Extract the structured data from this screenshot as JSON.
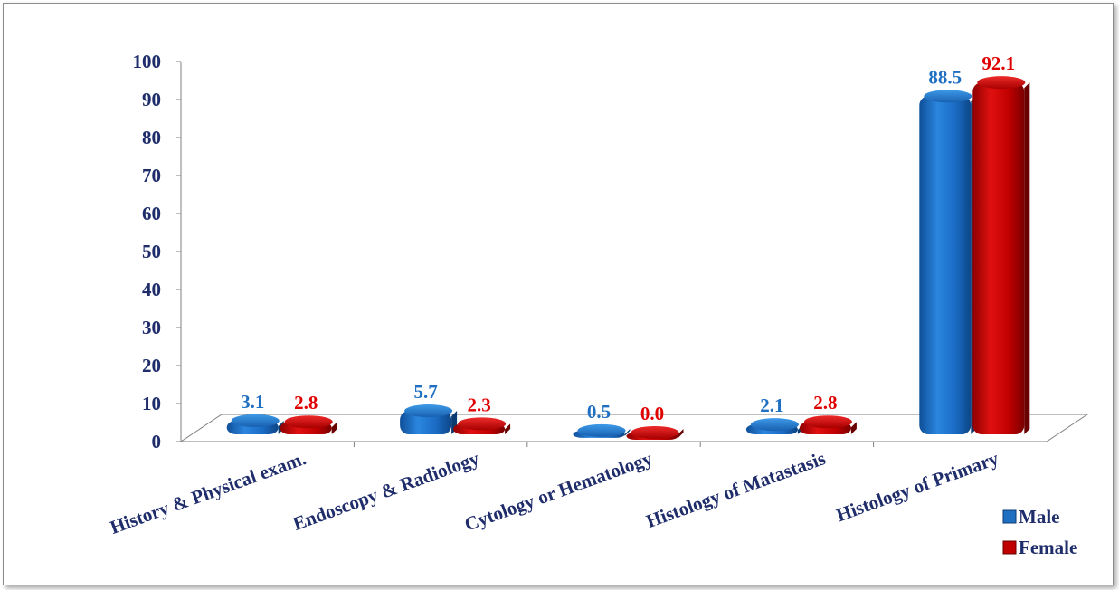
{
  "chart_data": {
    "type": "bar",
    "categories": [
      "History & Physical exam.",
      "Endoscopy & Radiology",
      "Cytology or Hematology",
      "Histology of Matastasis",
      "Histology of Primary"
    ],
    "series": [
      {
        "name": "Male",
        "values": [
          3.1,
          5.7,
          0.5,
          2.1,
          88.5
        ],
        "labels": [
          "3.1",
          "5.7",
          "0.5",
          "2.1",
          "88.5"
        ],
        "color": "#1f6fc2"
      },
      {
        "name": "Female",
        "values": [
          2.8,
          2.3,
          0.0,
          2.8,
          92.1
        ],
        "labels": [
          "2.8",
          "2.3",
          "0.0",
          "2.8",
          "92.1"
        ],
        "color": "#c00000"
      }
    ],
    "ylim": [
      0,
      100
    ],
    "yticks": [
      "0",
      "10",
      "20",
      "30",
      "40",
      "50",
      "60",
      "70",
      "80",
      "90",
      "100"
    ],
    "legend_position": "bottom-right",
    "grid": false
  }
}
